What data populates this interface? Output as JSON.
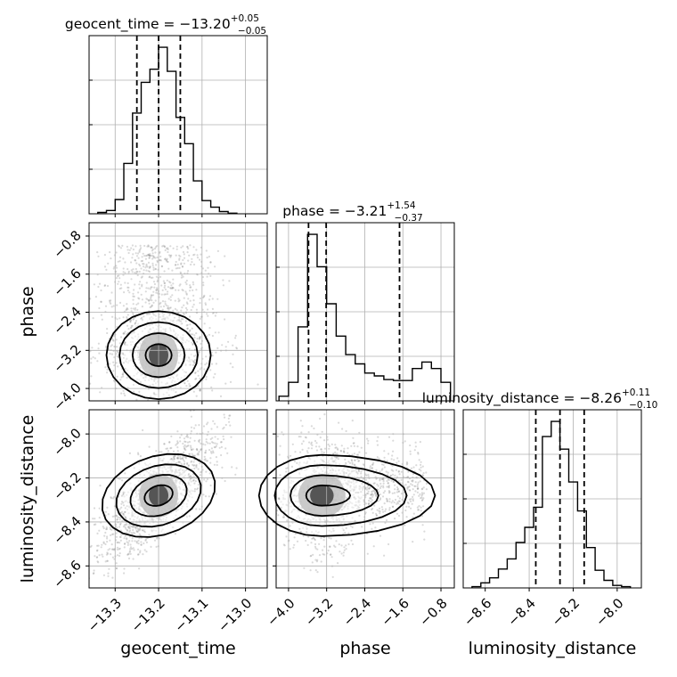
{
  "chart_data": {
    "type": "corner",
    "grid": true,
    "params": [
      "geocent_time",
      "phase",
      "luminosity_distance"
    ],
    "axes": {
      "geocent_time": {
        "range": [
          -13.36,
          -12.95
        ],
        "ticks": [
          -13.3,
          -13.2,
          -13.1,
          -13.0
        ],
        "tick_labels": [
          "−13.3",
          "−13.2",
          "−13.1",
          "−13.0"
        ]
      },
      "phase": {
        "range": [
          -4.26,
          -0.52
        ],
        "ticks": [
          -4.0,
          -3.2,
          -2.4,
          -1.6,
          -0.8
        ],
        "tick_labels": [
          "−4.0",
          "−3.2",
          "−2.4",
          "−1.6",
          "−0.8"
        ]
      },
      "luminosity_distance": {
        "range": [
          -8.7,
          -7.89
        ],
        "ticks": [
          -8.6,
          -8.4,
          -8.2,
          -8.0
        ],
        "tick_labels": [
          "−8.6",
          "−8.4",
          "−8.2",
          "−8.0"
        ]
      }
    },
    "xlabels": [
      "geocent_time",
      "phase",
      "luminosity_distance"
    ],
    "ylabels": [
      "",
      "phase",
      "luminosity_distance"
    ],
    "marginals": [
      {
        "param": "geocent_time",
        "title": {
          "prefix": "geocent_time = −13.20",
          "plus": "+0.05",
          "minus": "−0.05"
        },
        "quantiles": [
          -13.25,
          -13.2,
          -13.15
        ],
        "bin_edges": [
          -13.34,
          -13.32,
          -13.3,
          -13.28,
          -13.26,
          -13.24,
          -13.22,
          -13.2,
          -13.18,
          -13.16,
          -13.14,
          -13.12,
          -13.1,
          -13.08,
          -13.06,
          -13.04,
          -13.02
        ],
        "heights": [
          0.6,
          1.5,
          6.5,
          23,
          46,
          60,
          66,
          76,
          65,
          44,
          32,
          15,
          6,
          3,
          1,
          0.3
        ]
      },
      {
        "param": "phase",
        "title": {
          "prefix": "phase = −3.21",
          "plus": "+1.54",
          "minus": "−0.37"
        },
        "quantiles": [
          -3.58,
          -3.21,
          -1.67
        ],
        "bin_edges": [
          -4.2,
          -4.0,
          -3.8,
          -3.6,
          -3.4,
          -3.2,
          -3.0,
          -2.8,
          -2.6,
          -2.4,
          -2.2,
          -2.0,
          -1.8,
          -1.6,
          -1.4,
          -1.2,
          -1.0,
          -0.8,
          -0.6
        ],
        "heights": [
          5,
          20,
          80,
          180,
          145,
          105,
          70,
          50,
          40,
          30,
          27,
          23,
          22,
          22,
          35,
          42,
          35,
          20
        ]
      },
      {
        "param": "luminosity_distance",
        "title": {
          "prefix": "luminosity_distance = −8.26",
          "plus": "+0.11",
          "minus": "−0.10"
        },
        "quantiles": [
          -8.37,
          -8.26,
          -8.15
        ],
        "bin_edges": [
          -8.66,
          -8.62,
          -8.58,
          -8.54,
          -8.5,
          -8.46,
          -8.42,
          -8.38,
          -8.34,
          -8.3,
          -8.26,
          -8.22,
          -8.18,
          -8.14,
          -8.1,
          -8.06,
          -8.02,
          -7.98,
          -7.94
        ],
        "heights": [
          1,
          4,
          8,
          15,
          23,
          36,
          48,
          64,
          120,
          132,
          110,
          84,
          61,
          32,
          14,
          6,
          2,
          1
        ]
      }
    ],
    "joint": [
      {
        "x": "geocent_time",
        "y": "phase",
        "mean": [
          -13.2,
          -3.3
        ],
        "sd": [
          0.05,
          0.55
        ]
      },
      {
        "x": "geocent_time",
        "y": "luminosity_distance",
        "mean": [
          -13.2,
          -8.28
        ],
        "sd": [
          0.05,
          0.11
        ],
        "correlation": 0.75
      },
      {
        "x": "phase",
        "y": "luminosity_distance",
        "mean": [
          -3.3,
          -8.28
        ],
        "sd": [
          0.55,
          0.11
        ]
      }
    ]
  }
}
